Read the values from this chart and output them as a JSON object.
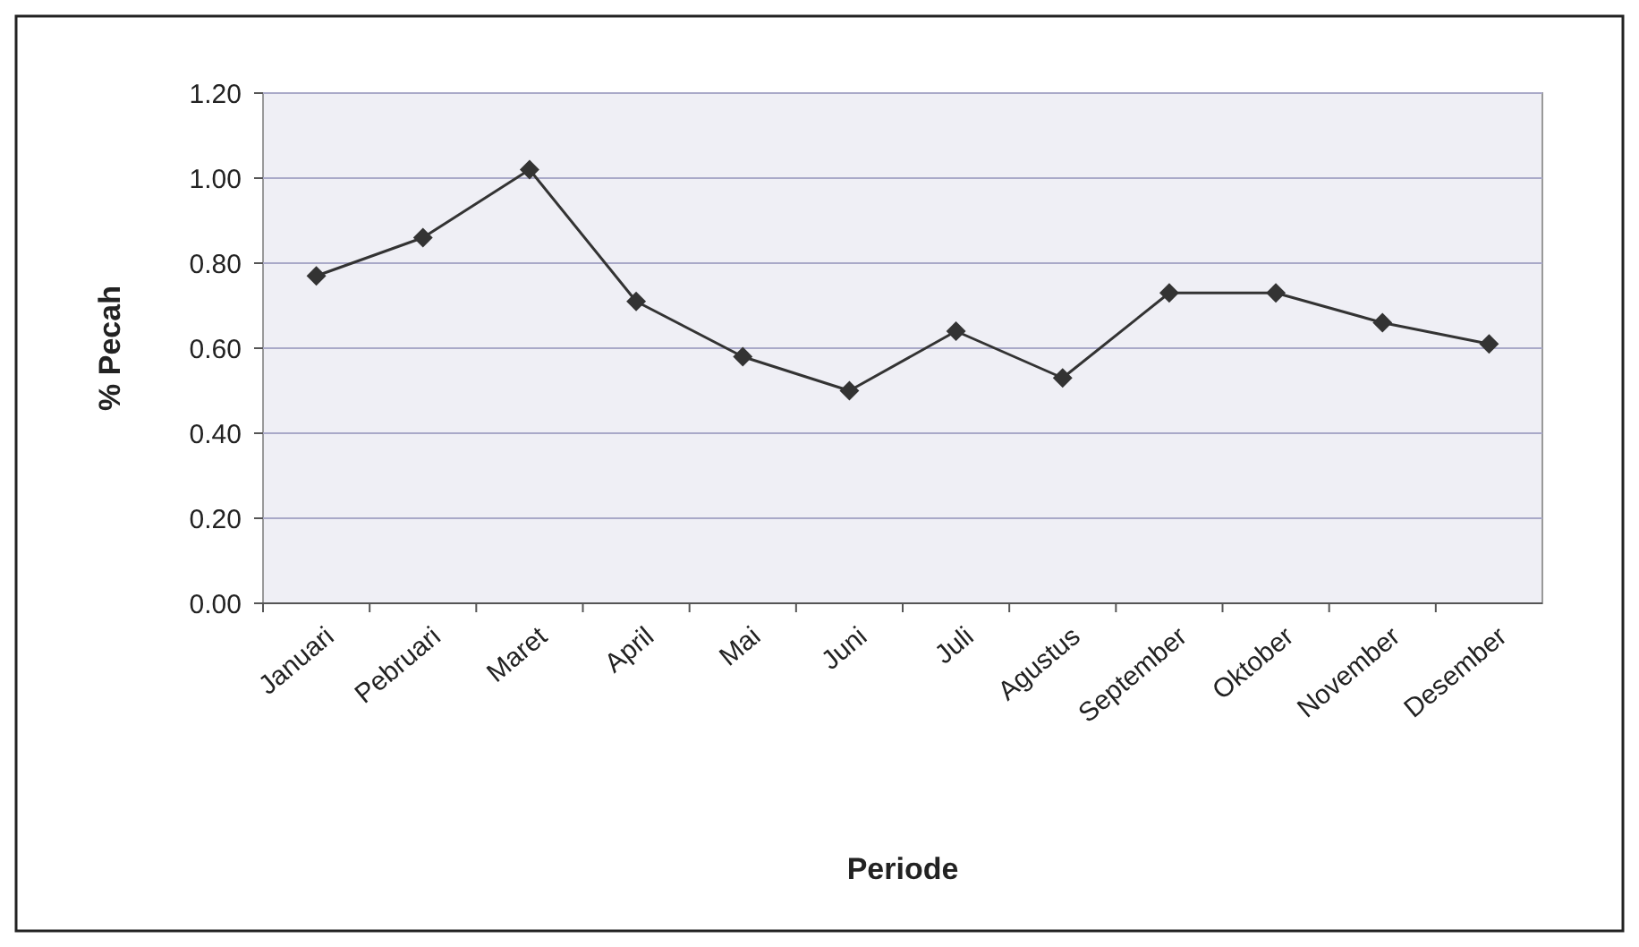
{
  "chart_data": {
    "type": "line",
    "xlabel": "Periode",
    "ylabel": "% Pecah",
    "categories": [
      "Januari",
      "Pebruari",
      "Maret",
      "April",
      "Mai",
      "Juni",
      "Juli",
      "Agustus",
      "September",
      "Oktober",
      "November",
      "Desember"
    ],
    "series": [
      {
        "color": "#333333",
        "values": [
          0.77,
          0.86,
          1.02,
          0.71,
          0.58,
          0.5,
          0.64,
          0.53,
          0.73,
          0.73,
          0.66,
          0.61
        ]
      }
    ],
    "ylim": [
      0,
      1.2
    ],
    "yticks": [
      {
        "value": 0,
        "label": "0.00"
      },
      {
        "value": 0.2,
        "label": "0.20"
      },
      {
        "value": 0.4,
        "label": "0.40"
      },
      {
        "value": 0.6,
        "label": "0.60"
      },
      {
        "value": 0.8,
        "label": "0.80"
      },
      {
        "value": 1,
        "label": "1.00"
      },
      {
        "value": 1.2,
        "label": "1.20"
      }
    ],
    "grid": "y",
    "marker": "diamond",
    "line_style": "solid"
  }
}
